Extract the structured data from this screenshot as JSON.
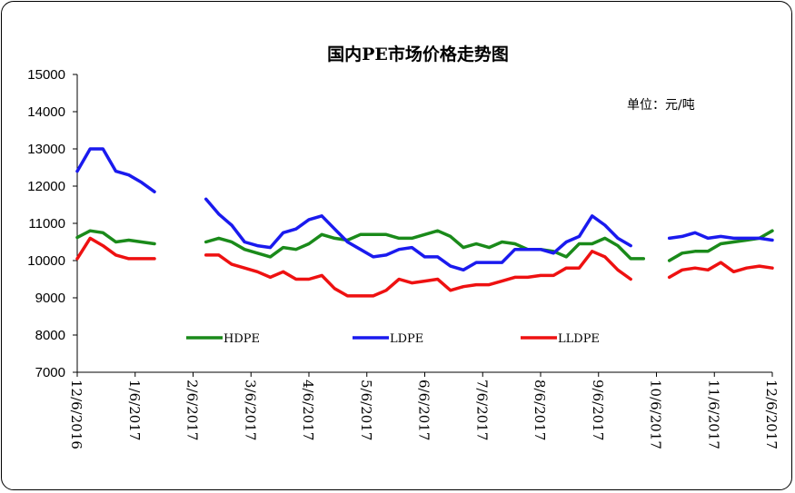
{
  "chart_data": {
    "type": "line",
    "title": "国内PE市场价格走势图",
    "unit_label": "单位：元/吨",
    "ylim": [
      7000,
      15000
    ],
    "yticks": [
      "15000",
      "14000",
      "13000",
      "12000",
      "11000",
      "10000",
      "9000",
      "8000",
      "7000"
    ],
    "x_tick_labels": [
      "12/6/2016",
      "1/6/2017",
      "2/6/2017",
      "3/6/2017",
      "4/6/2017",
      "5/6/2017",
      "6/6/2017",
      "7/6/2017",
      "8/6/2017",
      "9/6/2017",
      "10/6/2017",
      "11/6/2017",
      "12/6/2017"
    ],
    "grid": false,
    "legend_position": "inside-bottom",
    "series": [
      {
        "name": "HDPE",
        "color": "#1a8a1a",
        "values": [
          10620,
          10800,
          10750,
          10500,
          10550,
          10500,
          10450,
          null,
          null,
          null,
          10500,
          10600,
          10500,
          10300,
          10200,
          10100,
          10350,
          10300,
          10450,
          10700,
          10600,
          10550,
          10700,
          10700,
          10700,
          10600,
          10600,
          10700,
          10800,
          10650,
          10350,
          10450,
          10350,
          10500,
          10450,
          10300,
          10300,
          10250,
          10100,
          10450,
          10450,
          10600,
          10400,
          10050,
          10050,
          null,
          10000,
          10200,
          10250,
          10250,
          10450,
          10500,
          10550,
          10600,
          10800
        ]
      },
      {
        "name": "LDPE",
        "color": "#1a1aee",
        "values": [
          12400,
          13000,
          13000,
          12400,
          12300,
          12100,
          11850,
          null,
          null,
          null,
          11650,
          11250,
          10950,
          10500,
          10400,
          10350,
          10750,
          10850,
          11100,
          11200,
          10850,
          10500,
          10300,
          10100,
          10150,
          10300,
          10350,
          10100,
          10100,
          9850,
          9750,
          9950,
          9950,
          9950,
          10300,
          10300,
          10300,
          10200,
          10500,
          10650,
          11200,
          10950,
          10600,
          10400,
          null,
          null,
          10600,
          10650,
          10750,
          10600,
          10650,
          10600,
          10600,
          10600,
          10550
        ]
      },
      {
        "name": "LLDPE",
        "color": "#ee1111",
        "values": [
          10050,
          10600,
          10400,
          10150,
          10050,
          10050,
          10050,
          null,
          null,
          null,
          10150,
          10150,
          9900,
          9800,
          9700,
          9550,
          9700,
          9500,
          9500,
          9600,
          9250,
          9050,
          9050,
          9050,
          9200,
          9500,
          9400,
          9450,
          9500,
          9200,
          9300,
          9350,
          9350,
          9450,
          9550,
          9550,
          9600,
          9600,
          9800,
          9800,
          10250,
          10100,
          9750,
          9500,
          null,
          null,
          9550,
          9750,
          9800,
          9750,
          9950,
          9700,
          9800,
          9850,
          9800
        ]
      }
    ]
  }
}
